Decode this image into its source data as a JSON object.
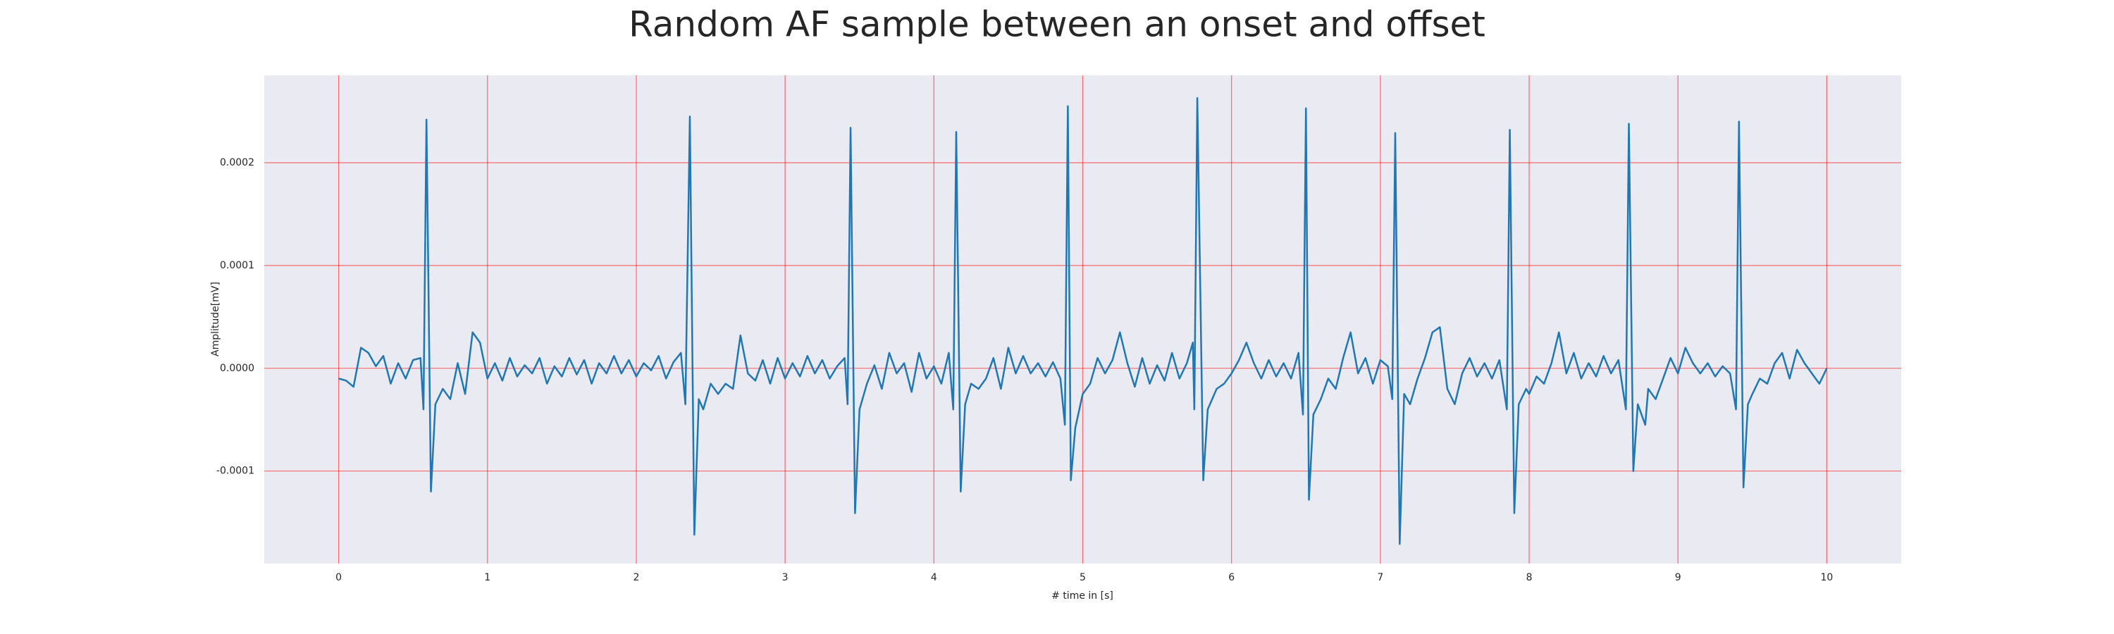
{
  "chart_data": {
    "type": "line",
    "title": "Random AF sample between an onset and offset",
    "xlabel": "# time in [s]",
    "ylabel": "Amplitude[mV]",
    "color": "#1f77b4",
    "grid": true,
    "grid_color": "#ff0000",
    "background": "#eaeaf2",
    "xlim": [
      -0.5,
      10.5
    ],
    "ylim": [
      -0.00019,
      0.000285
    ],
    "xticks": [
      0,
      1,
      2,
      3,
      4,
      5,
      6,
      7,
      8,
      9,
      10
    ],
    "yticks": [
      {
        "value": -0.0001,
        "label": "-0.0001"
      },
      {
        "value": 0,
        "label": "0.0000"
      },
      {
        "value": 0.0001,
        "label": "0.0001"
      },
      {
        "value": 0.0002,
        "label": "0.0002"
      }
    ],
    "x": [
      0,
      0.05,
      0.1,
      0.15,
      0.2,
      0.25,
      0.3,
      0.35,
      0.4,
      0.45,
      0.5,
      0.55,
      0.57,
      0.59,
      0.62,
      0.65,
      0.7,
      0.75,
      0.8,
      0.85,
      0.9,
      0.95,
      1.0,
      1.05,
      1.1,
      1.15,
      1.2,
      1.25,
      1.3,
      1.35,
      1.4,
      1.45,
      1.5,
      1.55,
      1.6,
      1.65,
      1.7,
      1.75,
      1.8,
      1.85,
      1.9,
      1.95,
      2.0,
      2.05,
      2.1,
      2.15,
      2.2,
      2.25,
      2.3,
      2.33,
      2.36,
      2.39,
      2.42,
      2.45,
      2.5,
      2.55,
      2.6,
      2.65,
      2.7,
      2.75,
      2.8,
      2.85,
      2.9,
      2.95,
      3.0,
      3.05,
      3.1,
      3.15,
      3.2,
      3.25,
      3.3,
      3.35,
      3.4,
      3.42,
      3.44,
      3.47,
      3.5,
      3.55,
      3.6,
      3.65,
      3.7,
      3.75,
      3.8,
      3.85,
      3.9,
      3.95,
      4.0,
      4.05,
      4.1,
      4.13,
      4.15,
      4.18,
      4.21,
      4.25,
      4.3,
      4.35,
      4.4,
      4.45,
      4.5,
      4.55,
      4.6,
      4.65,
      4.7,
      4.75,
      4.8,
      4.85,
      4.88,
      4.9,
      4.92,
      4.95,
      5.0,
      5.05,
      5.1,
      5.15,
      5.2,
      5.25,
      5.3,
      5.35,
      5.4,
      5.45,
      5.5,
      5.55,
      5.6,
      5.65,
      5.7,
      5.74,
      5.75,
      5.77,
      5.81,
      5.84,
      5.9,
      5.95,
      6.0,
      6.05,
      6.1,
      6.15,
      6.2,
      6.25,
      6.3,
      6.35,
      6.4,
      6.45,
      6.48,
      6.5,
      6.52,
      6.55,
      6.6,
      6.65,
      6.7,
      6.75,
      6.8,
      6.85,
      6.9,
      6.95,
      7.0,
      7.05,
      7.08,
      7.1,
      7.13,
      7.16,
      7.2,
      7.25,
      7.3,
      7.35,
      7.4,
      7.45,
      7.5,
      7.55,
      7.6,
      7.65,
      7.7,
      7.75,
      7.8,
      7.85,
      7.87,
      7.9,
      7.93,
      7.98,
      8.0,
      8.05,
      8.1,
      8.15,
      8.2,
      8.25,
      8.3,
      8.35,
      8.4,
      8.45,
      8.5,
      8.55,
      8.6,
      8.65,
      8.67,
      8.7,
      8.73,
      8.78,
      8.8,
      8.85,
      8.9,
      8.95,
      9.0,
      9.05,
      9.1,
      9.15,
      9.2,
      9.25,
      9.3,
      9.35,
      9.39,
      9.41,
      9.44,
      9.47,
      9.5,
      9.55,
      9.6,
      9.65,
      9.7,
      9.75,
      9.8,
      9.85,
      9.9,
      9.95,
      10.0
    ],
    "values": [
      -1e-05,
      -1.2e-05,
      -1.8e-05,
      2e-05,
      1.5e-05,
      2e-06,
      1.2e-05,
      -1.5e-05,
      5e-06,
      -1e-05,
      8e-06,
      1e-05,
      -4e-05,
      0.000242,
      -0.00012,
      -3.5e-05,
      -2e-05,
      -3e-05,
      5e-06,
      -2.5e-05,
      3.5e-05,
      2.5e-05,
      -1e-05,
      5e-06,
      -1.2e-05,
      1e-05,
      -8e-06,
      3e-06,
      -5e-06,
      1e-05,
      -1.5e-05,
      2e-06,
      -8e-06,
      1e-05,
      -6e-06,
      8e-06,
      -1.5e-05,
      5e-06,
      -5e-06,
      1.2e-05,
      -5e-06,
      8e-06,
      -8e-06,
      5e-06,
      -2e-06,
      1.2e-05,
      -1e-05,
      6e-06,
      1.5e-05,
      -3.5e-05,
      0.000245,
      -0.000162,
      -3e-05,
      -4e-05,
      -1.5e-05,
      -2.5e-05,
      -1.5e-05,
      -2e-05,
      3.2e-05,
      -5e-06,
      -1.2e-05,
      8e-06,
      -1.5e-05,
      1e-05,
      -1e-05,
      5e-06,
      -8e-06,
      1.2e-05,
      -5e-06,
      8e-06,
      -1e-05,
      2e-06,
      1e-05,
      -3.5e-05,
      0.000234,
      -0.000141,
      -4e-05,
      -1.5e-05,
      3e-06,
      -2e-05,
      1.5e-05,
      -5e-06,
      5e-06,
      -2.3e-05,
      1.5e-05,
      -1e-05,
      2e-06,
      -1.5e-05,
      1.5e-05,
      -4e-05,
      0.00023,
      -0.00012,
      -3.5e-05,
      -1.5e-05,
      -2e-05,
      -1e-05,
      1e-05,
      -2e-05,
      2e-05,
      -5e-06,
      1.2e-05,
      -5e-06,
      5e-06,
      -8e-06,
      6e-06,
      -1e-05,
      -5.5e-05,
      0.000255,
      -0.000109,
      -5.8e-05,
      -2.5e-05,
      -1.5e-05,
      1e-05,
      -5e-06,
      8e-06,
      3.5e-05,
      5e-06,
      -1.8e-05,
      1e-05,
      -1.5e-05,
      3e-06,
      -1.2e-05,
      1.5e-05,
      -1e-05,
      5e-06,
      2.5e-05,
      -4e-05,
      0.000263,
      -0.000109,
      -4e-05,
      -2e-05,
      -1.5e-05,
      -5e-06,
      8e-06,
      2.5e-05,
      5e-06,
      -1e-05,
      8e-06,
      -8e-06,
      5e-06,
      -1e-05,
      1.5e-05,
      -4.5e-05,
      0.000253,
      -0.000128,
      -4.5e-05,
      -3e-05,
      -1e-05,
      -2e-05,
      1e-05,
      3.5e-05,
      -5e-06,
      1e-05,
      -1.5e-05,
      8e-06,
      2e-06,
      -3e-05,
      0.000229,
      -0.000171,
      -2.5e-05,
      -3.5e-05,
      -1e-05,
      1e-05,
      3.5e-05,
      4e-05,
      -2e-05,
      -3.5e-05,
      -5e-06,
      1e-05,
      -8e-06,
      5e-06,
      -1e-05,
      8e-06,
      -4e-05,
      0.000232,
      -0.000141,
      -3.5e-05,
      -2e-05,
      -2.5e-05,
      -8e-06,
      -1.5e-05,
      5e-06,
      3.5e-05,
      -5e-06,
      1.5e-05,
      -1e-05,
      5e-06,
      -8e-06,
      1.2e-05,
      -5e-06,
      8e-06,
      -4e-05,
      0.000238,
      -0.0001,
      -3.5e-05,
      -5.5e-05,
      -2e-05,
      -3e-05,
      -1e-05,
      1e-05,
      -5e-06,
      2e-05,
      5e-06,
      -5e-06,
      5e-06,
      -8e-06,
      2e-06,
      -5e-06,
      -4e-05,
      0.00024,
      -0.000116,
      -3.5e-05,
      -2.5e-05,
      -1e-05,
      -1.5e-05,
      5e-06,
      1.5e-05,
      -1e-05,
      1.8e-05,
      5e-06,
      -5e-06,
      -1.5e-05,
      0
    ]
  }
}
